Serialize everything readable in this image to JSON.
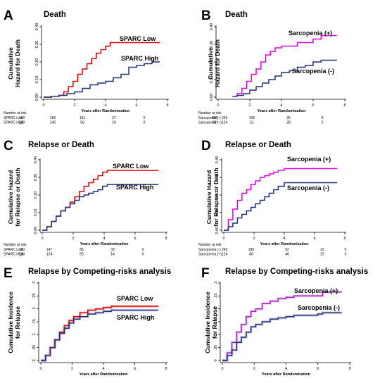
{
  "chart_data": [
    {
      "id": "A",
      "letter": "A",
      "type": "line",
      "title": "Death",
      "ylabel": "Cumulative Hazard for Death",
      "ylabel_lines": [
        "Cumulative",
        "Hazard for Death"
      ],
      "xlabel": "Years after Randomization",
      "xlim": [
        0,
        8
      ],
      "ylim": [
        0,
        0.4
      ],
      "xticks": [
        0,
        2,
        4,
        6,
        8
      ],
      "yticks": [
        "0.00",
        "0.10",
        "0.20",
        "0.30",
        "0.40"
      ],
      "series": [
        {
          "name": "SPARC Low",
          "color": "#e00000",
          "x": [
            0,
            0.5,
            1.0,
            1.3,
            1.6,
            1.9,
            2.2,
            2.5,
            2.8,
            3.1,
            3.4,
            3.7,
            4.0,
            4.3,
            4.8,
            5.5,
            6.5,
            7.5
          ],
          "y": [
            0,
            0.005,
            0.01,
            0.03,
            0.06,
            0.09,
            0.13,
            0.16,
            0.19,
            0.22,
            0.25,
            0.27,
            0.29,
            0.31,
            0.31,
            0.31,
            0.31,
            0.31
          ]
        },
        {
          "name": "SPARC High",
          "color": "#1f2e7a",
          "x": [
            0,
            0.5,
            1.0,
            1.5,
            2.0,
            2.5,
            3.0,
            3.5,
            4.0,
            4.5,
            5.0,
            5.5,
            6.0,
            6.5,
            7.0,
            7.5
          ],
          "y": [
            0,
            0.005,
            0.01,
            0.02,
            0.03,
            0.05,
            0.07,
            0.08,
            0.09,
            0.11,
            0.13,
            0.17,
            0.18,
            0.19,
            0.2,
            0.2
          ]
        }
      ],
      "label_a": "SPARC Low",
      "label_b": "SPARC High",
      "risk_title": "Number at risk",
      "risk_rows": [
        {
          "label": "SPARC Low",
          "n0": "190",
          "values": [
            "166",
            "101",
            "37",
            "0"
          ]
        },
        {
          "label": "SPARC High",
          "n0": "190",
          "values": [
            "140",
            "58",
            "16",
            "0"
          ]
        }
      ]
    },
    {
      "id": "B",
      "letter": "B",
      "type": "line",
      "title": "Death",
      "ylabel": "Cumulative Hazard for Death",
      "ylabel_lines": [
        "Cumulative",
        "Hazard for Death"
      ],
      "xlabel": "Years after Randomization",
      "xlim": [
        0,
        8
      ],
      "ylim": [
        0,
        0.4
      ],
      "xticks": [
        0,
        2,
        4,
        6,
        8
      ],
      "yticks": [
        "0.00",
        "0.10",
        "0.20",
        "0.30",
        "0.40"
      ],
      "series": [
        {
          "name": "Sarcopenia (+)",
          "color": "#e000e0",
          "x": [
            0.9,
            1.2,
            1.5,
            1.8,
            2.1,
            2.4,
            2.7,
            3.0,
            3.3,
            3.6,
            4.0,
            4.5,
            5.0,
            5.5,
            6.0,
            6.5,
            7.0,
            7.5
          ],
          "y": [
            0.005,
            0.02,
            0.05,
            0.09,
            0.13,
            0.16,
            0.2,
            0.24,
            0.26,
            0.28,
            0.29,
            0.29,
            0.31,
            0.31,
            0.33,
            0.35,
            0.35,
            0.35
          ]
        },
        {
          "name": "Sarcopenia (-)",
          "color": "#1f2e7a",
          "x": [
            0.9,
            1.2,
            1.6,
            2.0,
            2.4,
            2.8,
            3.2,
            3.6,
            4.0,
            4.5,
            5.0,
            5.5,
            6.0,
            6.5,
            7.0,
            7.5
          ],
          "y": [
            0.005,
            0.01,
            0.02,
            0.04,
            0.06,
            0.08,
            0.1,
            0.12,
            0.14,
            0.15,
            0.17,
            0.18,
            0.2,
            0.21,
            0.21,
            0.21
          ]
        }
      ],
      "label_a": "Sarcopenia (+)",
      "label_b": "Sarcopenia (-)",
      "risk_title": "Number at risk",
      "risk_rows": [
        {
          "label": "Sarcopenia (-) 245",
          "n0": "",
          "values": [
            "209",
            "106",
            "25",
            "0"
          ]
        },
        {
          "label": "Sarcopenia (+)124",
          "n0": "",
          "values": [
            "92",
            "51",
            "28",
            "0"
          ]
        }
      ]
    },
    {
      "id": "C",
      "letter": "C",
      "type": "line",
      "title": "Relapse or Death",
      "ylabel": "Cumulative Hazard for Relapse or Death",
      "ylabel_lines": [
        "Cumulative Hazard",
        "for Relapse or Death"
      ],
      "xlabel": "Years after Randomization",
      "xlim": [
        0,
        8
      ],
      "ylim": [
        0,
        0.4
      ],
      "xticks": [
        0,
        2,
        4,
        6,
        8
      ],
      "yticks": [
        "0.00",
        "0.10",
        "0.20",
        "0.30",
        "0.40"
      ],
      "series": [
        {
          "name": "SPARC Low",
          "color": "#e00000",
          "x": [
            0,
            0.3,
            0.6,
            0.9,
            1.2,
            1.5,
            1.8,
            2.1,
            2.4,
            2.7,
            3.0,
            3.3,
            3.6,
            3.9,
            4.2,
            5.0,
            6.0,
            7.5
          ],
          "y": [
            0,
            0.02,
            0.05,
            0.08,
            0.11,
            0.13,
            0.16,
            0.19,
            0.22,
            0.25,
            0.27,
            0.29,
            0.31,
            0.33,
            0.34,
            0.34,
            0.34,
            0.34
          ]
        },
        {
          "name": "SPARC High",
          "color": "#1f2e7a",
          "x": [
            0,
            0.3,
            0.6,
            0.9,
            1.2,
            1.5,
            1.8,
            2.1,
            2.4,
            2.7,
            3.0,
            3.3,
            3.6,
            3.9,
            4.2,
            5.0,
            6.0,
            7.5
          ],
          "y": [
            0,
            0.02,
            0.05,
            0.08,
            0.11,
            0.13,
            0.15,
            0.17,
            0.19,
            0.2,
            0.21,
            0.22,
            0.23,
            0.25,
            0.26,
            0.26,
            0.26,
            0.26
          ]
        }
      ],
      "label_a": "SPARC Low",
      "label_b": "SPARC High",
      "risk_title": "Number at risk",
      "risk_rows": [
        {
          "label": "SPARC Low",
          "n0": "190",
          "values": [
            "147",
            "85",
            "33",
            "0"
          ]
        },
        {
          "label": "SPARC High",
          "n0": "190",
          "values": [
            "124",
            "55",
            "14",
            "0"
          ]
        }
      ]
    },
    {
      "id": "D",
      "letter": "D",
      "type": "line",
      "title": "Relapse or Death",
      "ylabel": "Cumulative Hazard for Relapse or Death",
      "ylabel_lines": [
        "Cumulative Hazard",
        "for Relapse or Death"
      ],
      "xlabel": "Years after Randomization",
      "xlim": [
        0,
        8
      ],
      "ylim": [
        0,
        0.4
      ],
      "xticks": [
        0,
        2,
        4,
        6,
        8
      ],
      "yticks": [
        "0.00",
        "0.10",
        "0.20",
        "0.30",
        "0.40"
      ],
      "series": [
        {
          "name": "Sarcopenia (+)",
          "color": "#e000e0",
          "x": [
            0,
            0.3,
            0.6,
            0.9,
            1.2,
            1.5,
            1.8,
            2.1,
            2.4,
            2.7,
            3.0,
            3.3,
            3.6,
            4.0,
            5.0,
            6.0,
            7.5
          ],
          "y": [
            0,
            0.06,
            0.12,
            0.17,
            0.21,
            0.23,
            0.26,
            0.28,
            0.3,
            0.31,
            0.32,
            0.33,
            0.34,
            0.35,
            0.35,
            0.35,
            0.35
          ]
        },
        {
          "name": "Sarcopenia (-)",
          "color": "#1f2e7a",
          "x": [
            0,
            0.3,
            0.6,
            0.9,
            1.2,
            1.5,
            1.8,
            2.1,
            2.4,
            2.7,
            3.0,
            3.3,
            3.6,
            4.0,
            5.0,
            6.0,
            7.5
          ],
          "y": [
            0,
            0.02,
            0.04,
            0.07,
            0.09,
            0.11,
            0.13,
            0.15,
            0.17,
            0.19,
            0.21,
            0.23,
            0.25,
            0.27,
            0.27,
            0.27,
            0.27
          ]
        }
      ],
      "label_a": "Sarcopenia (+)",
      "label_b": "Sarcopenia (-)",
      "risk_title": "Number at risk",
      "risk_rows": [
        {
          "label": "Sarcopenia (-) 245",
          "n0": "",
          "values": [
            "186",
            "92",
            "22",
            "0"
          ]
        },
        {
          "label": "Sarcopenia (+)124",
          "n0": "",
          "values": [
            "80",
            "46",
            "25",
            "0"
          ]
        }
      ]
    },
    {
      "id": "E",
      "letter": "E",
      "type": "line",
      "title": "Relapse by Competing-risks analysis",
      "ylabel": "Cumulative Incidence for Relapse",
      "ylabel_lines": [
        "Cumulative Incidence",
        "for Relapse"
      ],
      "xlabel": "Years after Randomization",
      "xlim": [
        0,
        8
      ],
      "ylim": [
        0,
        0.3
      ],
      "xticks": [
        0,
        2,
        4,
        6,
        8
      ],
      "yticks": [
        "0",
        ".05",
        ".1",
        ".15",
        ".2",
        ".25",
        ".3"
      ],
      "series": [
        {
          "name": "SPARC Low",
          "color": "#e00000",
          "x": [
            0,
            0.3,
            0.6,
            0.9,
            1.2,
            1.5,
            1.8,
            2.1,
            2.5,
            3.0,
            3.5,
            4.0,
            4.5,
            5.0,
            6.0,
            7.5
          ],
          "y": [
            0,
            0.02,
            0.05,
            0.08,
            0.11,
            0.135,
            0.155,
            0.17,
            0.185,
            0.195,
            0.2,
            0.205,
            0.21,
            0.21,
            0.21,
            0.21
          ]
        },
        {
          "name": "SPARC High",
          "color": "#1f2e7a",
          "x": [
            0,
            0.3,
            0.6,
            0.9,
            1.2,
            1.5,
            1.8,
            2.1,
            2.5,
            3.0,
            3.5,
            4.0,
            4.5,
            5.0,
            6.0,
            7.5
          ],
          "y": [
            0,
            0.02,
            0.05,
            0.08,
            0.105,
            0.125,
            0.145,
            0.16,
            0.17,
            0.18,
            0.185,
            0.19,
            0.195,
            0.195,
            0.195,
            0.195
          ]
        }
      ],
      "label_a": "SPARC Low",
      "label_b": "SPARC High",
      "risk_title": "",
      "risk_rows": []
    },
    {
      "id": "F",
      "letter": "F",
      "type": "line",
      "title": "Relapse by Competing-risks analysis",
      "ylabel": "Cumulative Incidence for Relapse",
      "ylabel_lines": [
        "Cumulative Incidence",
        "for Relapse"
      ],
      "xlabel": "Years after Randomization",
      "xlim": [
        0,
        8
      ],
      "ylim": [
        0,
        0.3
      ],
      "xticks": [
        0,
        2,
        4,
        6,
        8
      ],
      "yticks": [
        "0",
        ".05",
        ".1",
        ".15",
        ".2",
        ".25",
        ".3"
      ],
      "series": [
        {
          "name": "Sarcopenia (+)",
          "color": "#a020c0",
          "x": [
            0,
            0.3,
            0.6,
            0.9,
            1.2,
            1.5,
            1.8,
            2.1,
            2.5,
            3.0,
            3.5,
            4.0,
            4.5,
            5.0,
            6.0,
            6.3,
            7.5
          ],
          "y": [
            0,
            0.03,
            0.07,
            0.11,
            0.14,
            0.17,
            0.19,
            0.2,
            0.22,
            0.23,
            0.24,
            0.245,
            0.25,
            0.25,
            0.25,
            0.265,
            0.265
          ]
        },
        {
          "name": "Sarcopenia (-)",
          "color": "#1f2e7a",
          "x": [
            0,
            0.3,
            0.6,
            0.9,
            1.2,
            1.5,
            1.8,
            2.1,
            2.5,
            3.0,
            3.5,
            4.0,
            4.5,
            5.0,
            6.0,
            6.3,
            7.5
          ],
          "y": [
            0,
            0.02,
            0.04,
            0.07,
            0.09,
            0.11,
            0.13,
            0.14,
            0.15,
            0.16,
            0.165,
            0.17,
            0.175,
            0.175,
            0.18,
            0.185,
            0.185
          ]
        }
      ],
      "label_a": "Sarcopenia (+)",
      "label_b": "Sarcopenia (-)",
      "risk_title": "",
      "risk_rows": []
    }
  ]
}
